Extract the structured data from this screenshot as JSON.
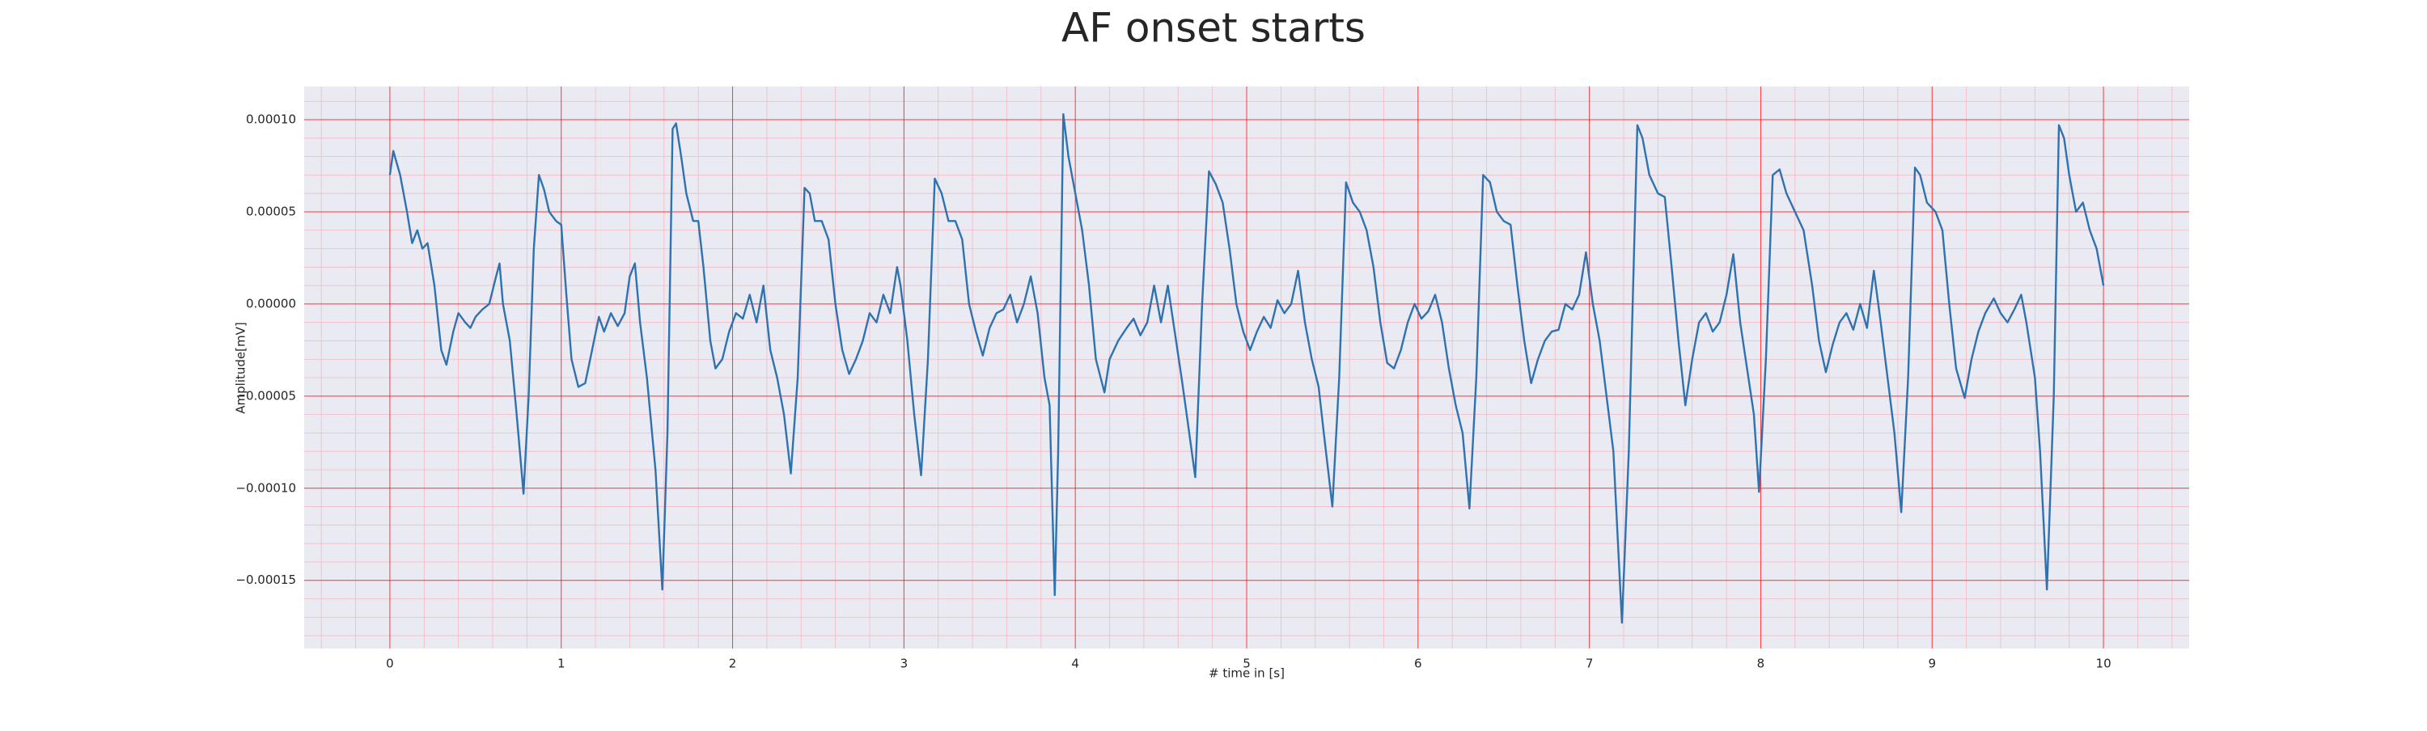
{
  "chart_data": {
    "type": "line",
    "title": "AF onset starts",
    "xlabel": "# time in [s]",
    "ylabel": "Amplitude[mV]",
    "xlim": [
      -0.5,
      10.5
    ],
    "ylim": [
      -0.000187,
      0.000118
    ],
    "xticks": [
      0,
      1,
      2,
      3,
      4,
      5,
      6,
      7,
      8,
      9,
      10
    ],
    "yticks": [
      {
        "value": -0.00015,
        "label": "−0.00015"
      },
      {
        "value": -0.0001,
        "label": "−0.00010"
      },
      {
        "value": -5e-05,
        "label": "−0.00005"
      },
      {
        "value": 0,
        "label": "0.00000"
      },
      {
        "value": 5e-05,
        "label": "0.00005"
      },
      {
        "value": 0.0001,
        "label": "0.00010"
      }
    ],
    "grid": true,
    "minor_grid": true,
    "grid_color": "#ff0000",
    "background": "#eaeaf2",
    "x": [
      0,
      0.02,
      0.06,
      0.1,
      0.13,
      0.16,
      0.19,
      0.22,
      0.26,
      0.3,
      0.33,
      0.37,
      0.4,
      0.44,
      0.47,
      0.5,
      0.54,
      0.58,
      0.62,
      0.64,
      0.66,
      0.7,
      0.74,
      0.78,
      0.81,
      0.84,
      0.87,
      0.9,
      0.93,
      0.97,
      1.0,
      1.03,
      1.06,
      1.1,
      1.14,
      1.18,
      1.22,
      1.25,
      1.29,
      1.33,
      1.37,
      1.4,
      1.43,
      1.46,
      1.5,
      1.55,
      1.59,
      1.62,
      1.65,
      1.67,
      1.7,
      1.73,
      1.77,
      1.8,
      1.83,
      1.87,
      1.9,
      1.94,
      1.98,
      2.02,
      2.06,
      2.1,
      2.14,
      2.18,
      2.22,
      2.26,
      2.3,
      2.34,
      2.38,
      2.42,
      2.45,
      2.48,
      2.52,
      2.56,
      2.6,
      2.64,
      2.68,
      2.72,
      2.76,
      2.8,
      2.84,
      2.88,
      2.92,
      2.96,
      2.98,
      3.02,
      3.06,
      3.1,
      3.14,
      3.18,
      3.22,
      3.26,
      3.3,
      3.34,
      3.38,
      3.42,
      3.46,
      3.5,
      3.54,
      3.58,
      3.62,
      3.66,
      3.7,
      3.74,
      3.78,
      3.82,
      3.85,
      3.88,
      3.9,
      3.93,
      3.96,
      4.0,
      4.04,
      4.08,
      4.12,
      4.17,
      4.2,
      4.25,
      4.3,
      4.34,
      4.38,
      4.42,
      4.46,
      4.5,
      4.54,
      4.58,
      4.62,
      4.65,
      4.7,
      4.74,
      4.78,
      4.82,
      4.86,
      4.9,
      4.94,
      4.98,
      5.02,
      5.06,
      5.1,
      5.14,
      5.18,
      5.22,
      5.26,
      5.3,
      5.34,
      5.38,
      5.42,
      5.45,
      5.5,
      5.54,
      5.58,
      5.62,
      5.66,
      5.7,
      5.74,
      5.78,
      5.82,
      5.86,
      5.9,
      5.94,
      5.98,
      6.02,
      6.06,
      6.1,
      6.14,
      6.18,
      6.22,
      6.26,
      6.3,
      6.34,
      6.38,
      6.42,
      6.46,
      6.5,
      6.54,
      6.58,
      6.62,
      6.66,
      6.7,
      6.74,
      6.78,
      6.82,
      6.86,
      6.9,
      6.94,
      6.98,
      7.02,
      7.06,
      7.1,
      7.14,
      7.19,
      7.23,
      7.28,
      7.31,
      7.35,
      7.4,
      7.44,
      7.48,
      7.52,
      7.56,
      7.6,
      7.64,
      7.68,
      7.72,
      7.76,
      7.8,
      7.84,
      7.88,
      7.92,
      7.96,
      7.99,
      8.03,
      8.07,
      8.11,
      8.15,
      8.2,
      8.25,
      8.3,
      8.34,
      8.38,
      8.42,
      8.46,
      8.5,
      8.54,
      8.58,
      8.62,
      8.66,
      8.7,
      8.74,
      8.78,
      8.82,
      8.86,
      8.9,
      8.93,
      8.97,
      9.02,
      9.06,
      9.1,
      9.14,
      9.19,
      9.23,
      9.27,
      9.31,
      9.36,
      9.4,
      9.44,
      9.48,
      9.52,
      9.55,
      9.6,
      9.63,
      9.67,
      9.71,
      9.74,
      9.77,
      9.8,
      9.84,
      9.88,
      9.92,
      9.96,
      10.0
    ],
    "series": [
      {
        "color": "#2e72b0",
        "values": [
          7e-05,
          8.3e-05,
          7e-05,
          5e-05,
          3.3e-05,
          4e-05,
          3e-05,
          3.3e-05,
          1e-05,
          -2.5e-05,
          -3.3e-05,
          -1.5e-05,
          -5e-06,
          -1e-05,
          -1.3e-05,
          -7e-06,
          -3e-06,
          0,
          1.5e-05,
          2.2e-05,
          0,
          -2e-05,
          -6e-05,
          -0.000103,
          -5e-05,
          3e-05,
          7e-05,
          6.2e-05,
          5e-05,
          4.5e-05,
          4.3e-05,
          5e-06,
          -3e-05,
          -4.5e-05,
          -4.3e-05,
          -2.5e-05,
          -7e-06,
          -1.5e-05,
          -5e-06,
          -1.2e-05,
          -5e-06,
          1.5e-05,
          2.2e-05,
          -1e-05,
          -4e-05,
          -9e-05,
          -0.000155,
          -7e-05,
          9.5e-05,
          9.8e-05,
          8e-05,
          6e-05,
          4.5e-05,
          4.5e-05,
          2e-05,
          -2e-05,
          -3.5e-05,
          -3e-05,
          -1.5e-05,
          -5e-06,
          -8e-06,
          5e-06,
          -1e-05,
          1e-05,
          -2.5e-05,
          -4e-05,
          -6e-05,
          -9.2e-05,
          -4e-05,
          6.3e-05,
          6e-05,
          4.5e-05,
          4.5e-05,
          3.5e-05,
          0,
          -2.5e-05,
          -3.8e-05,
          -3e-05,
          -2e-05,
          -5e-06,
          -1e-05,
          5e-06,
          -5e-06,
          2e-05,
          1e-05,
          -2e-05,
          -6e-05,
          -9.3e-05,
          -3e-05,
          6.8e-05,
          6e-05,
          4.5e-05,
          4.5e-05,
          3.5e-05,
          0,
          -1.5e-05,
          -2.8e-05,
          -1.3e-05,
          -5e-06,
          -3e-06,
          5e-06,
          -1e-05,
          0,
          1.5e-05,
          -5e-06,
          -4e-05,
          -5.5e-05,
          -0.000158,
          -8e-05,
          0.000103,
          8e-05,
          6e-05,
          4e-05,
          1e-05,
          -3e-05,
          -4.8e-05,
          -3e-05,
          -2e-05,
          -1.3e-05,
          -8e-06,
          -1.7e-05,
          -1e-05,
          1e-05,
          -1e-05,
          1e-05,
          -1.5e-05,
          -4e-05,
          -6e-05,
          -9.4e-05,
          0,
          7.2e-05,
          6.5e-05,
          5.5e-05,
          3e-05,
          0,
          -1.5e-05,
          -2.5e-05,
          -1.5e-05,
          -7e-06,
          -1.3e-05,
          2e-06,
          -5e-06,
          0,
          1.8e-05,
          -1e-05,
          -3e-05,
          -4.5e-05,
          -7e-05,
          -0.00011,
          -4e-05,
          6.6e-05,
          5.5e-05,
          5e-05,
          4e-05,
          2e-05,
          -1e-05,
          -3.2e-05,
          -3.5e-05,
          -2.5e-05,
          -1e-05,
          0,
          -8e-06,
          -4e-06,
          5e-06,
          -1e-05,
          -3.5e-05,
          -5.5e-05,
          -7e-05,
          -0.000111,
          -4e-05,
          7e-05,
          6.6e-05,
          5e-05,
          4.5e-05,
          4.3e-05,
          1e-05,
          -2e-05,
          -4.3e-05,
          -3e-05,
          -2e-05,
          -1.5e-05,
          -1.4e-05,
          0,
          -3e-06,
          5e-06,
          2.8e-05,
          0,
          -2e-05,
          -5e-05,
          -8e-05,
          -0.000173,
          -8e-05,
          9.7e-05,
          9e-05,
          7e-05,
          6e-05,
          5.8e-05,
          2e-05,
          -2e-05,
          -5.5e-05,
          -3e-05,
          -1e-05,
          -5e-06,
          -1.5e-05,
          -1e-05,
          5e-06,
          2.7e-05,
          -1e-05,
          -3.5e-05,
          -6e-05,
          -0.000102,
          -3e-05,
          7e-05,
          7.3e-05,
          6e-05,
          5e-05,
          4e-05,
          1e-05,
          -2e-05,
          -3.7e-05,
          -2.2e-05,
          -1e-05,
          -5e-06,
          -1.4e-05,
          0,
          -1.3e-05,
          1.8e-05,
          -1e-05,
          -4e-05,
          -7e-05,
          -0.000113,
          -4e-05,
          7.4e-05,
          7e-05,
          5.5e-05,
          5e-05,
          4e-05,
          0,
          -3.5e-05,
          -5.1e-05,
          -3e-05,
          -1.5e-05,
          -5e-06,
          3e-06,
          -5e-06,
          -1e-05,
          -3e-06,
          5e-06,
          -1e-05,
          -4e-05,
          -8e-05,
          -0.000155,
          -5e-05,
          9.7e-05,
          9e-05,
          7e-05,
          5e-05,
          5.5e-05,
          4e-05,
          3e-05,
          1e-05
        ]
      }
    ]
  }
}
